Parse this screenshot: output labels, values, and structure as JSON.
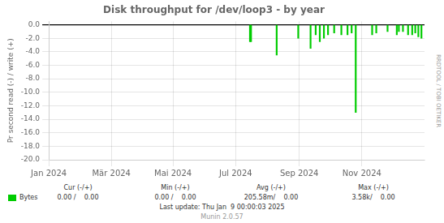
{
  "chart_data": {
    "type": "bar",
    "title": "Disk throughput for /dev/loop3 - by year",
    "ylabel": "Pr second read (-) / write (+)",
    "x": [
      196,
      197,
      222,
      243,
      255,
      260,
      264,
      268,
      272,
      278,
      285,
      291,
      295,
      299,
      315,
      319,
      330,
      339,
      341,
      345,
      350,
      354,
      357,
      360,
      363
    ],
    "series": [
      {
        "name": "Bytes",
        "color": "#00cc00",
        "values": [
          -2.5,
          -2.5,
          -4.5,
          -2.0,
          -3.5,
          -1.5,
          -2.5,
          -2.0,
          -1.5,
          -1.2,
          -1.5,
          -1.5,
          -1.2,
          -13.0,
          -1.5,
          -1.2,
          -1.0,
          -1.5,
          -1.0,
          -1.0,
          -1.5,
          -1.5,
          -1.2,
          -1.8,
          -2.0
        ]
      }
    ],
    "xlim": [
      0,
      366
    ],
    "xticks": [
      {
        "value": 0,
        "label": "Jan 2024"
      },
      {
        "value": 61,
        "label": "Mär 2024"
      },
      {
        "value": 121,
        "label": "Mai 2024"
      },
      {
        "value": 182,
        "label": "Jul 2024"
      },
      {
        "value": 244,
        "label": "Sep 2024"
      },
      {
        "value": 305,
        "label": "Nov 2024"
      }
    ],
    "ylim": [
      -20,
      0.5
    ],
    "yticks": [
      {
        "value": 0.0,
        "label": "0.0"
      },
      {
        "value": -2.0,
        "label": "-2.0"
      },
      {
        "value": -4.0,
        "label": "-4.0"
      },
      {
        "value": -6.0,
        "label": "-6.0"
      },
      {
        "value": -8.0,
        "label": "-8.0"
      },
      {
        "value": -10.0,
        "label": "-10.0"
      },
      {
        "value": -12.0,
        "label": "-12.0"
      },
      {
        "value": -14.0,
        "label": "-14.0"
      },
      {
        "value": -16.0,
        "label": "-16.0"
      },
      {
        "value": -18.0,
        "label": "-18.0"
      },
      {
        "value": -20.0,
        "label": "-20.0"
      }
    ],
    "grid": true,
    "legend": "lower left",
    "annotations": [
      [
        "Cur (-/+)",
        "Min (-/+)",
        "Avg (-/+)",
        "Max (-/+)"
      ],
      [
        "0.00 /    0.00",
        "0.00 /    0.00",
        "205.58m/    0.00",
        "3.58k/    0.00"
      ],
      [
        "Last update: Thu Jan  9 00:00:03 2025"
      ],
      [
        "Munin 2.0.57"
      ],
      [
        "RRDTOOL / TOBI OETIKER"
      ]
    ]
  }
}
